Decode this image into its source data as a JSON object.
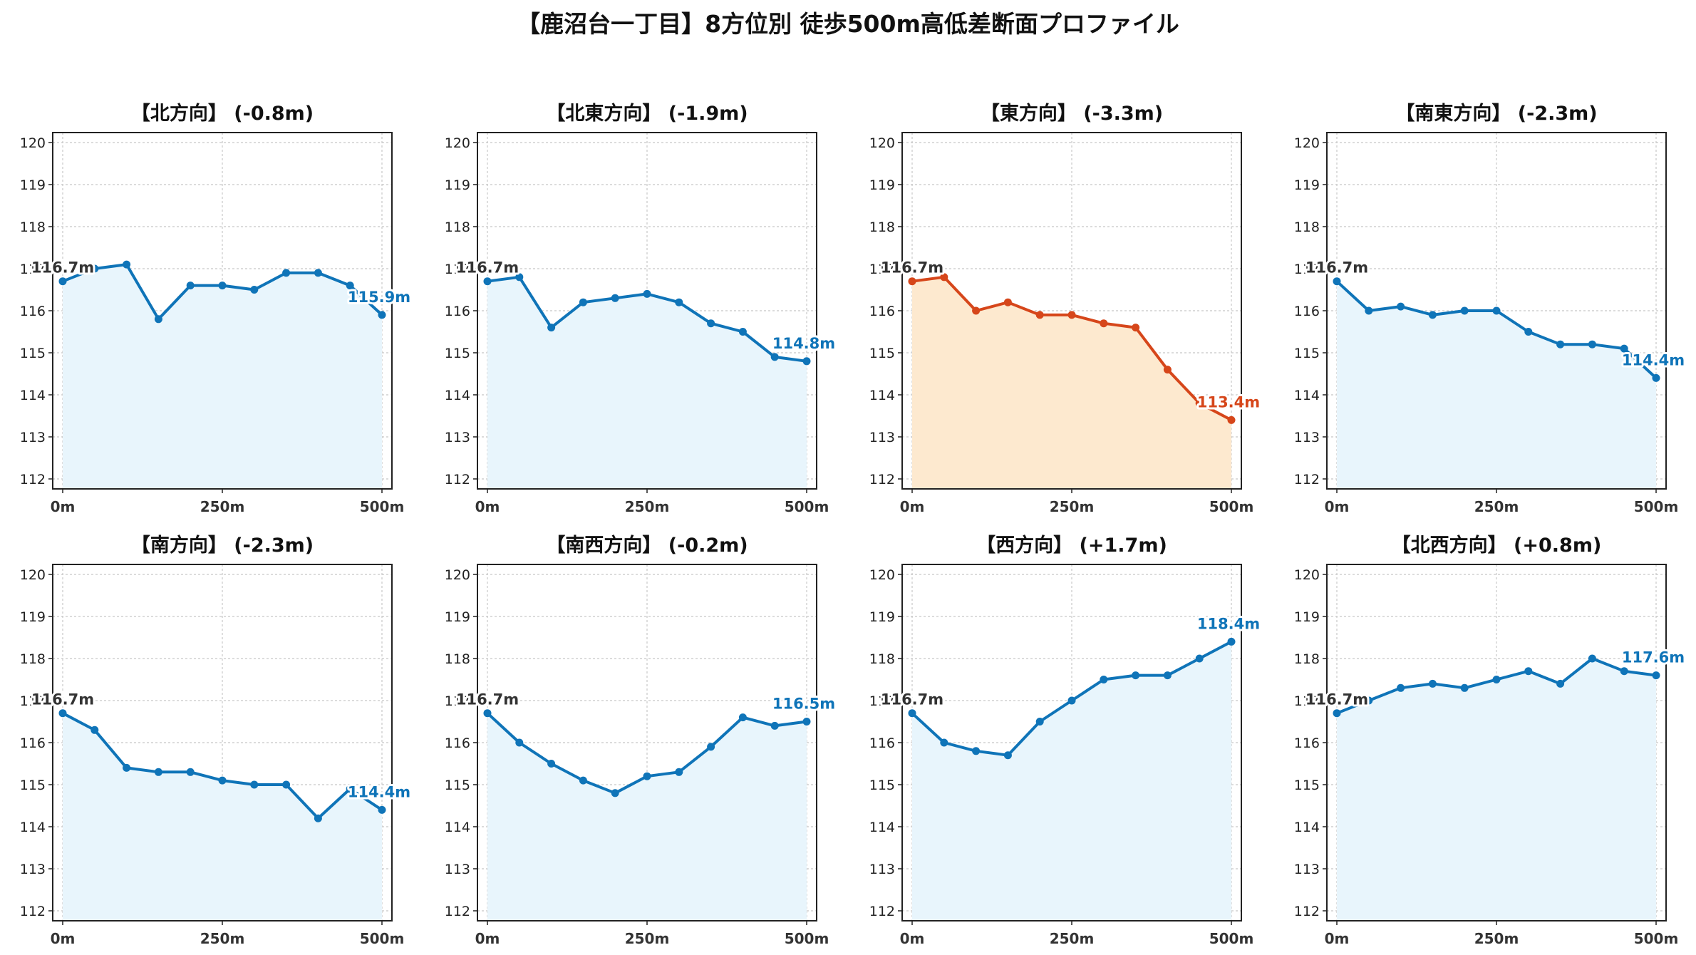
{
  "title": "【鹿沼台一丁目】8方位別 徒歩500m高低差断面プロファイル",
  "colors": {
    "normal_line": "#0f74b8",
    "normal_fill": "#e8f5fc",
    "highlight_line": "#d6461a",
    "highlight_fill": "#fde9cf",
    "start_label": "#333333",
    "grid": "#c8c8c8"
  },
  "chart_data": [
    {
      "type": "line",
      "title": "【北方向】 (-0.8m)",
      "highlight": false,
      "x": [
        0,
        50,
        100,
        150,
        200,
        250,
        300,
        350,
        400,
        450,
        500
      ],
      "values": [
        116.7,
        117.0,
        117.1,
        115.8,
        116.6,
        116.6,
        116.5,
        116.9,
        116.9,
        116.6,
        115.9
      ],
      "xticks": [
        "0m",
        "250m",
        "500m"
      ],
      "ylim": [
        112,
        120
      ],
      "start_label": "116.7m",
      "end_label": "115.9m",
      "grid": true
    },
    {
      "type": "line",
      "title": "【北東方向】 (-1.9m)",
      "highlight": false,
      "x": [
        0,
        50,
        100,
        150,
        200,
        250,
        300,
        350,
        400,
        450,
        500
      ],
      "values": [
        116.7,
        116.8,
        115.6,
        116.2,
        116.3,
        116.4,
        116.2,
        115.7,
        115.5,
        114.9,
        114.8
      ],
      "xticks": [
        "0m",
        "250m",
        "500m"
      ],
      "ylim": [
        112,
        120
      ],
      "start_label": "116.7m",
      "end_label": "114.8m",
      "grid": true
    },
    {
      "type": "line",
      "title": "【東方向】 (-3.3m)",
      "highlight": true,
      "x": [
        0,
        50,
        100,
        150,
        200,
        250,
        300,
        350,
        400,
        450,
        500
      ],
      "values": [
        116.7,
        116.8,
        116.0,
        116.2,
        115.9,
        115.9,
        115.7,
        115.6,
        114.6,
        113.8,
        113.4
      ],
      "xticks": [
        "0m",
        "250m",
        "500m"
      ],
      "ylim": [
        112,
        120
      ],
      "start_label": "116.7m",
      "end_label": "113.4m",
      "grid": true
    },
    {
      "type": "line",
      "title": "【南東方向】 (-2.3m)",
      "highlight": false,
      "x": [
        0,
        50,
        100,
        150,
        200,
        250,
        300,
        350,
        400,
        450,
        500
      ],
      "values": [
        116.7,
        116.0,
        116.1,
        115.9,
        116.0,
        116.0,
        115.5,
        115.2,
        115.2,
        115.1,
        114.4
      ],
      "xticks": [
        "0m",
        "250m",
        "500m"
      ],
      "ylim": [
        112,
        120
      ],
      "start_label": "116.7m",
      "end_label": "114.4m",
      "grid": true
    },
    {
      "type": "line",
      "title": "【南方向】 (-2.3m)",
      "highlight": false,
      "x": [
        0,
        50,
        100,
        150,
        200,
        250,
        300,
        350,
        400,
        450,
        500
      ],
      "values": [
        116.7,
        116.3,
        115.4,
        115.3,
        115.3,
        115.1,
        115.0,
        115.0,
        114.2,
        114.9,
        114.4
      ],
      "xticks": [
        "0m",
        "250m",
        "500m"
      ],
      "ylim": [
        112,
        120
      ],
      "start_label": "116.7m",
      "end_label": "114.4m",
      "grid": true
    },
    {
      "type": "line",
      "title": "【南西方向】 (-0.2m)",
      "highlight": false,
      "x": [
        0,
        50,
        100,
        150,
        200,
        250,
        300,
        350,
        400,
        450,
        500
      ],
      "values": [
        116.7,
        116.0,
        115.5,
        115.1,
        114.8,
        115.2,
        115.3,
        115.9,
        116.6,
        116.4,
        116.5
      ],
      "xticks": [
        "0m",
        "250m",
        "500m"
      ],
      "ylim": [
        112,
        120
      ],
      "start_label": "116.7m",
      "end_label": "116.5m",
      "grid": true
    },
    {
      "type": "line",
      "title": "【西方向】 (+1.7m)",
      "highlight": false,
      "x": [
        0,
        50,
        100,
        150,
        200,
        250,
        300,
        350,
        400,
        450,
        500
      ],
      "values": [
        116.7,
        116.0,
        115.8,
        115.7,
        116.5,
        117.0,
        117.5,
        117.6,
        117.6,
        118.0,
        118.4
      ],
      "xticks": [
        "0m",
        "250m",
        "500m"
      ],
      "ylim": [
        112,
        120
      ],
      "start_label": "116.7m",
      "end_label": "118.4m",
      "grid": true
    },
    {
      "type": "line",
      "title": "【北西方向】 (+0.8m)",
      "highlight": false,
      "x": [
        0,
        50,
        100,
        150,
        200,
        250,
        300,
        350,
        400,
        450,
        500
      ],
      "values": [
        116.7,
        117.0,
        117.3,
        117.4,
        117.3,
        117.5,
        117.7,
        117.4,
        118.0,
        117.7,
        117.6
      ],
      "xticks": [
        "0m",
        "250m",
        "500m"
      ],
      "ylim": [
        112,
        120
      ],
      "start_label": "116.7m",
      "end_label": "117.6m",
      "grid": true
    }
  ]
}
